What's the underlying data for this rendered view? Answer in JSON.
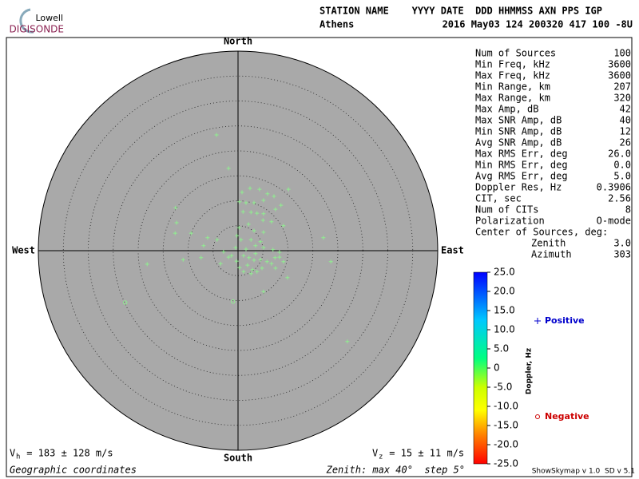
{
  "header": {
    "logo_top": "Lowell",
    "logo_bottom": "DIGISONDE",
    "columns": "STATION NAME    YYYY DATE  DDD HHMMSS AXN PPS IGP",
    "station": "Athens",
    "values": "2016 May03 124 200320 417 100 -8U"
  },
  "chart_data": {
    "type": "skymap",
    "directions": {
      "north": "North",
      "south": "South",
      "east": "East",
      "west": "West"
    },
    "zenith_max": 40,
    "zenith_step": 5,
    "series": [
      {
        "name": "Positive",
        "color": "#0000cc",
        "point_color": "#90ee90",
        "marker": "+",
        "x": [
          -4.3,
          -1.9,
          0.8,
          2.4,
          4.3,
          5.9,
          7.2,
          10.1,
          0.3,
          1.6,
          3.2,
          5.1,
          8.6,
          1.0,
          2.6,
          3.8,
          5.1,
          7.5,
          5.0,
          6.7,
          9.1,
          -12.5,
          -12.3,
          -12.6,
          -9.4,
          -6.1,
          -4.2,
          2.1,
          3.2,
          5.1,
          -0.2,
          2.6,
          3.5,
          5.1,
          7.0,
          8.3,
          -0.5,
          1.1,
          2.2,
          3.2,
          4.5,
          5.8,
          6.7,
          8.3,
          9.1,
          1.9,
          2.9,
          3.8,
          1.1,
          2.6,
          4.8,
          7.5,
          9.9,
          5.1,
          -2.9,
          -1.9,
          -3.5,
          -6.9,
          -7.4,
          -11.0,
          -18.2,
          17.1,
          18.6,
          21.9,
          -0.3,
          0.3,
          1.6,
          3.5,
          7.4,
          0.2,
          0.6,
          -1.3,
          4.5
        ],
        "y": [
          23.2,
          16.5,
          11.7,
          12.5,
          12.3,
          11.4,
          10.9,
          12.3,
          9.8,
          9.6,
          9.6,
          10.1,
          9.1,
          7.8,
          7.7,
          7.5,
          7.4,
          8.3,
          6.1,
          5.8,
          5.0,
          8.6,
          5.6,
          3.5,
          3.5,
          2.6,
          2.2,
          5.3,
          4.0,
          3.7,
          3.0,
          2.2,
          1.0,
          0.6,
          0.2,
          -0.3,
          0.6,
          -1.0,
          -1.4,
          -1.9,
          -1.8,
          -2.2,
          -2.6,
          -1.3,
          -2.2,
          -2.9,
          -3.8,
          -4.2,
          -4.2,
          -4.6,
          -3.5,
          -3.5,
          -5.4,
          -8.2,
          -0.2,
          -1.3,
          -2.6,
          1.0,
          -1.4,
          -1.8,
          -2.7,
          2.6,
          -2.2,
          -18.2,
          -2.1,
          -3.4,
          0.3,
          -0.6,
          -1.4,
          4.6,
          2.2,
          -1.0,
          1.8
        ]
      },
      {
        "name": "Negative",
        "color": "#cc0000",
        "point_color": "#90ee90",
        "marker": "o",
        "x": [
          -22.6,
          -1.0
        ],
        "y": [
          -10.4,
          -10.2
        ]
      }
    ],
    "colorbar": {
      "label": "Doppler, Hz",
      "lim": [
        -25,
        25
      ],
      "ticks": [
        {
          "value": 25,
          "label": "25.0"
        },
        {
          "value": 20,
          "label": "20.0"
        },
        {
          "value": 15,
          "label": "15.0"
        },
        {
          "value": 10,
          "label": "10.0"
        },
        {
          "value": 5,
          "label": "5.0"
        },
        0,
        {
          "value": -5,
          "label": "-5.0"
        },
        {
          "value": -10,
          "label": "-10.0"
        },
        {
          "value": -15,
          "label": "-15.0"
        },
        {
          "value": -20,
          "label": "-20.0"
        },
        {
          "value": -25,
          "label": "-25.0"
        }
      ]
    }
  },
  "stats": [
    [
      "Num of Sources",
      "100"
    ],
    [
      "Min Freq, kHz",
      "3600"
    ],
    [
      "Max Freq, kHz",
      "3600"
    ],
    [
      "Min Range, km",
      "207"
    ],
    [
      "Max Range, km",
      "320"
    ],
    [
      "Max Amp, dB",
      "42"
    ],
    [
      "Max SNR Amp, dB",
      "40"
    ],
    [
      "Min SNR Amp, dB",
      "12"
    ],
    [
      "Avg SNR Amp, dB",
      "26"
    ],
    [
      "Max RMS Err, deg",
      "26.0"
    ],
    [
      "Min RMS Err, deg",
      "0.0"
    ],
    [
      "Avg RMS Err, deg",
      "5.0"
    ],
    [
      "Doppler Res, Hz",
      "0.3906"
    ],
    [
      "CIT, sec",
      "2.56"
    ],
    [
      "Num of CITs",
      "8"
    ],
    [
      "Polarization",
      "O-mode"
    ]
  ],
  "center": {
    "label": "Center of Sources, deg:",
    "zenith_label": "Zenith",
    "zenith": "3.0",
    "azimuth_label": "Azimuth",
    "azimuth": "303"
  },
  "footer": {
    "vh_v": "V",
    "vh_sub": "h",
    "vh_text": " = 183 ± 128 m/s",
    "vz_v": "V",
    "vz_sub": "z",
    "vz_text": " = 15 ± 11 m/s",
    "coords": "Geographic coordinates",
    "zenith": "Zenith: max 40°  step 5°",
    "version": "ShowSkymap v 1.0  SD v 5.1"
  }
}
